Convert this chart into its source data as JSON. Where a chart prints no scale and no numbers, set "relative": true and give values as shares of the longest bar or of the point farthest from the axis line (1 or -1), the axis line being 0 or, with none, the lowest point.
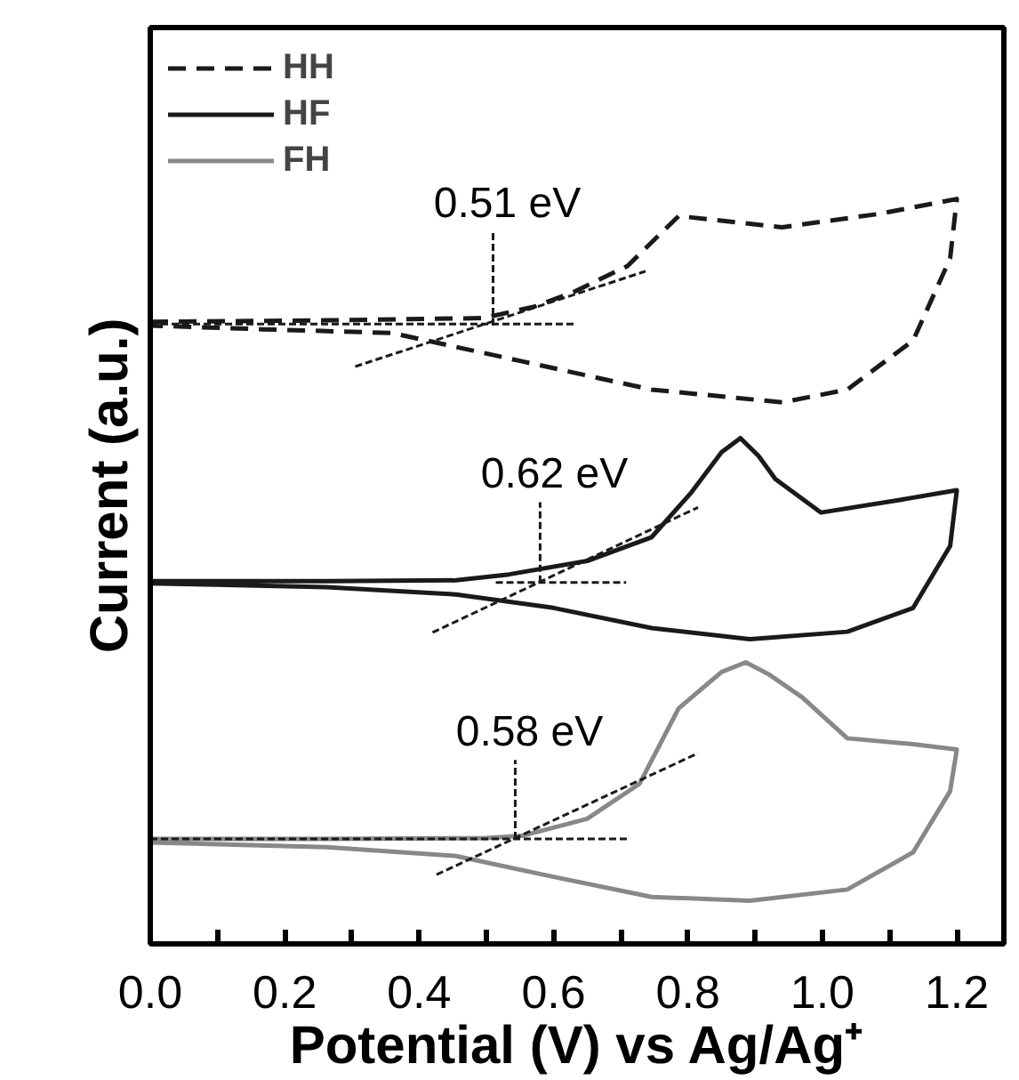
{
  "chart_data": {
    "type": "line",
    "relative": true,
    "xlabel": "Potential (V) vs Ag/Ag⁺",
    "ylabel": "Current (a.u.)",
    "xlim": [
      0,
      1.27
    ],
    "xticks": [
      {
        "value": 0,
        "label": "0.0"
      },
      {
        "value": 0.1,
        "label": null
      },
      0.2,
      {
        "value": 0.3,
        "label": null
      },
      0.4,
      {
        "value": 0.5,
        "label": null
      },
      0.6,
      {
        "value": 0.7,
        "label": null
      },
      0.8,
      {
        "value": 0.9,
        "label": null
      },
      {
        "value": 1.0,
        "label": "1.0"
      },
      {
        "value": 1.1,
        "label": null
      },
      1.2
    ],
    "tick_labels": "x",
    "grid": false,
    "legend": "top left",
    "marker": "none",
    "series": [
      {
        "name": "HH",
        "color": "#1a1a1a",
        "line_style": "dashed",
        "x": [
          0,
          0.26,
          0.495,
          0.57,
          0.63,
          0.71,
          0.786,
          0.94,
          1.085,
          1.2,
          1.19,
          1.135,
          1.037,
          0.94,
          0.746,
          0.553,
          0.36,
          0.167,
          0
        ],
        "values": [
          0.835,
          0.837,
          0.84,
          0.855,
          0.875,
          0.91,
          0.977,
          0.962,
          0.98,
          1.0,
          0.92,
          0.81,
          0.744,
          0.727,
          0.744,
          0.782,
          0.82,
          0.825,
          0.83
        ]
      },
      {
        "name": "HF",
        "color": "#1a1a1a",
        "line_style": "solid",
        "x": [
          0,
          0.262,
          0.455,
          0.534,
          0.65,
          0.746,
          0.805,
          0.85,
          0.878,
          0.905,
          0.93,
          0.998,
          1.115,
          1.2,
          1.19,
          1.135,
          1.037,
          0.892,
          0.746,
          0.6,
          0.455,
          0.262,
          0
        ],
        "values": [
          0.487,
          0.487,
          0.488,
          0.496,
          0.514,
          0.546,
          0.606,
          0.66,
          0.679,
          0.655,
          0.624,
          0.579,
          0.596,
          0.609,
          0.534,
          0.451,
          0.419,
          0.409,
          0.424,
          0.451,
          0.469,
          0.479,
          0.484
        ]
      },
      {
        "name": "FH",
        "color": "#888888",
        "line_style": "solid",
        "x": [
          0,
          0.262,
          0.5,
          0.553,
          0.65,
          0.728,
          0.786,
          0.85,
          0.886,
          0.92,
          0.97,
          1.037,
          1.135,
          1.2,
          1.19,
          1.135,
          1.037,
          0.892,
          0.746,
          0.6,
          0.455,
          0.262,
          0
        ],
        "values": [
          0.141,
          0.141,
          0.142,
          0.145,
          0.168,
          0.215,
          0.316,
          0.365,
          0.378,
          0.362,
          0.331,
          0.276,
          0.268,
          0.261,
          0.205,
          0.123,
          0.073,
          0.058,
          0.063,
          0.09,
          0.118,
          0.13,
          0.136
        ]
      },
      {
        "color": "#1a1a1a",
        "line_style": "dashed",
        "x": [
          0,
          0.63
        ],
        "values": [
          0.832,
          0.832
        ]
      },
      {
        "color": "#1a1a1a",
        "line_style": "dashed",
        "x": [
          0.305,
          0.737
        ],
        "values": [
          0.775,
          0.903
        ]
      },
      {
        "color": "#1a1a1a",
        "line_style": "dashed",
        "x": [
          0.51,
          0.51
        ],
        "values": [
          0.83,
          0.956
        ]
      },
      {
        "color": "#1a1a1a",
        "line_style": "dashed",
        "x": [
          0.514,
          0.708
        ],
        "values": [
          0.485,
          0.485
        ]
      },
      {
        "color": "#1a1a1a",
        "line_style": "dashed",
        "x": [
          0.42,
          0.815
        ],
        "values": [
          0.418,
          0.586
        ]
      },
      {
        "color": "#1a1a1a",
        "line_style": "dashed",
        "x": [
          0.58,
          0.58
        ],
        "values": [
          0.485,
          0.593
        ]
      },
      {
        "color": "#1a1a1a",
        "line_style": "dashed",
        "x": [
          0,
          0.712
        ],
        "values": [
          0.141,
          0.141
        ]
      },
      {
        "color": "#1a1a1a",
        "line_style": "dashed",
        "x": [
          0.426,
          0.815
        ],
        "values": [
          0.093,
          0.256
        ]
      },
      {
        "color": "#1a1a1a",
        "line_style": "dashed",
        "x": [
          0.543,
          0.543
        ],
        "values": [
          0.141,
          0.247
        ]
      }
    ],
    "annotations": [
      {
        "text": "0.51 eV",
        "x": 0.51,
        "y": 0.956
      },
      {
        "text": "0.62 eV",
        "x": 0.58,
        "y": 0.593
      },
      {
        "text": "0.58 eV",
        "x": 0.543,
        "y": 0.247
      }
    ]
  }
}
